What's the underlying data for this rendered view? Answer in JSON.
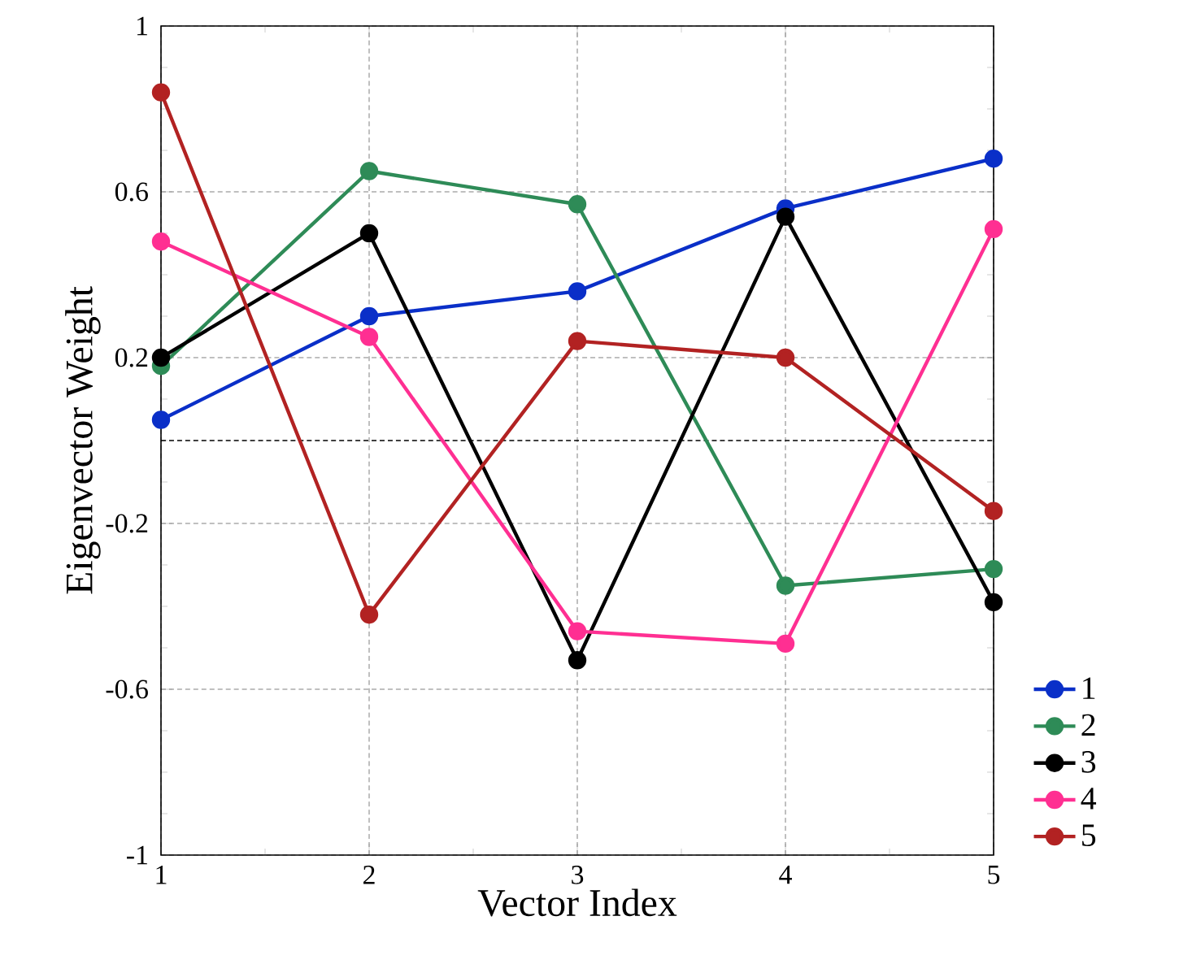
{
  "chart_data": {
    "type": "line",
    "xlabel": "Vector Index",
    "ylabel": "Eigenvector Weight",
    "x": [
      1,
      2,
      3,
      4,
      5
    ],
    "series": [
      {
        "name": "1",
        "color": "#0a2fc8",
        "values": [
          0.05,
          0.3,
          0.36,
          0.56,
          0.68
        ]
      },
      {
        "name": "2",
        "color": "#2e8b57",
        "values": [
          0.18,
          0.65,
          0.57,
          -0.35,
          -0.31
        ]
      },
      {
        "name": "3",
        "color": "#000000",
        "values": [
          0.2,
          0.5,
          -0.53,
          0.54,
          -0.39
        ]
      },
      {
        "name": "4",
        "color": "#ff2f92",
        "values": [
          0.48,
          0.25,
          -0.46,
          -0.49,
          0.51
        ]
      },
      {
        "name": "5",
        "color": "#b22222",
        "values": [
          0.84,
          -0.42,
          0.24,
          0.2,
          -0.17
        ]
      }
    ],
    "xlim": [
      1,
      5
    ],
    "xticks": [
      1,
      2,
      3,
      4,
      5
    ],
    "ylim": [
      -1,
      1
    ],
    "yticks": [
      -1,
      -0.6,
      -0.2,
      0.2,
      0.6,
      1
    ],
    "ref_lines": [
      {
        "axis": "y",
        "value": 0,
        "color": "#000000",
        "line_style": "dotted"
      }
    ],
    "grid": true,
    "legend": "right",
    "marker": "circle",
    "line_style": "solid"
  }
}
